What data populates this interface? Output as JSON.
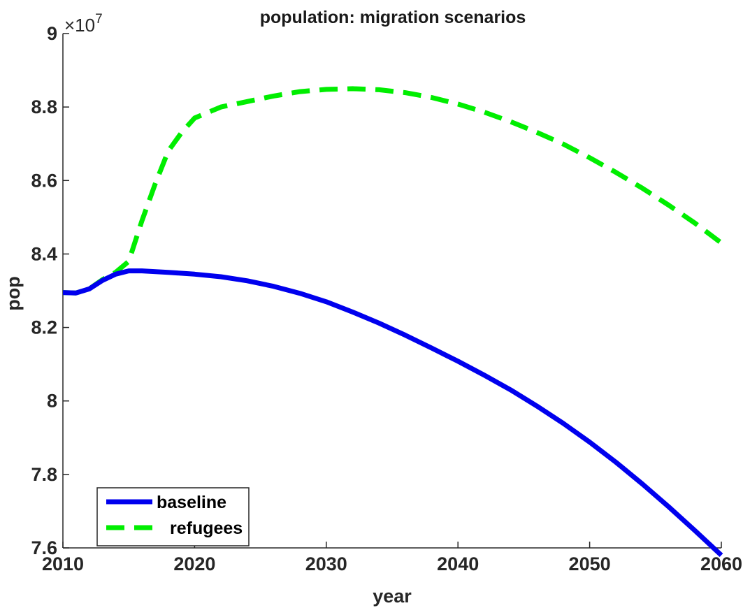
{
  "chart_data": {
    "type": "line",
    "title": "population: migration scenarios",
    "xlabel": "year",
    "ylabel": "pop",
    "xlim": [
      2010,
      2060
    ],
    "ylim": [
      76000000,
      90000000
    ],
    "x_ticks": [
      2010,
      2020,
      2030,
      2040,
      2050,
      2060
    ],
    "x_tick_labels": [
      "2010",
      "2020",
      "2030",
      "2040",
      "2050",
      "2060"
    ],
    "y_ticks": [
      76000000,
      78000000,
      80000000,
      82000000,
      84000000,
      86000000,
      88000000,
      90000000
    ],
    "y_tick_labels": [
      "7.6",
      "7.8",
      "8",
      "8.2",
      "8.4",
      "8.6",
      "8.8",
      "9"
    ],
    "y_multiplier_label": "×10",
    "y_multiplier_exponent": "7",
    "legend_position": "bottom-left",
    "grid": false,
    "series": [
      {
        "name": "baseline",
        "color": "#0000ee",
        "style": "solid",
        "x": [
          2010,
          2011,
          2012,
          2013,
          2014,
          2015,
          2016,
          2018,
          2020,
          2022,
          2024,
          2026,
          2028,
          2030,
          2032,
          2034,
          2036,
          2038,
          2040,
          2042,
          2044,
          2046,
          2048,
          2050,
          2052,
          2054,
          2056,
          2058,
          2060
        ],
        "y": [
          82950000,
          82940000,
          83050000,
          83280000,
          83450000,
          83540000,
          83540000,
          83500000,
          83450000,
          83380000,
          83270000,
          83120000,
          82930000,
          82700000,
          82420000,
          82120000,
          81790000,
          81440000,
          81080000,
          80700000,
          80300000,
          79860000,
          79390000,
          78880000,
          78330000,
          77740000,
          77120000,
          76470000,
          75800000
        ]
      },
      {
        "name": "refugees",
        "color": "#00ee00",
        "style": "dashed",
        "x": [
          2010,
          2011,
          2012,
          2013,
          2014,
          2015,
          2016,
          2017,
          2018,
          2019,
          2020,
          2022,
          2024,
          2026,
          2028,
          2030,
          2032,
          2034,
          2036,
          2038,
          2040,
          2042,
          2044,
          2046,
          2048,
          2050,
          2052,
          2054,
          2056,
          2058,
          2060
        ],
        "y": [
          82950000,
          82940000,
          83050000,
          83300000,
          83500000,
          83800000,
          84900000,
          85900000,
          86800000,
          87300000,
          87700000,
          88000000,
          88150000,
          88300000,
          88420000,
          88480000,
          88500000,
          88470000,
          88390000,
          88260000,
          88080000,
          87860000,
          87600000,
          87310000,
          86990000,
          86620000,
          86220000,
          85790000,
          85330000,
          84840000,
          84300000
        ]
      }
    ]
  }
}
